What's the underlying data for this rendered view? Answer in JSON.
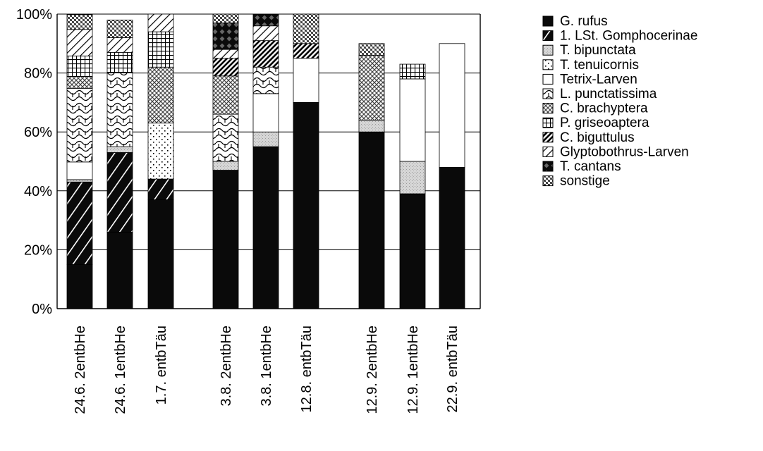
{
  "chart_data": {
    "type": "bar",
    "stacked": true,
    "percent": true,
    "ylim": [
      0,
      100
    ],
    "yticks": [
      "0%",
      "20%",
      "40%",
      "60%",
      "80%",
      "100%"
    ],
    "grid": "horizontal",
    "legend_position": "right",
    "categories": [
      "24.6. 2entbHe",
      "24.6. 1entbHe",
      "1.7. entbTäu",
      "3.8. 2entbHe",
      "3.8. 1entbHe",
      "12.8. entbTäu",
      "12.9. 2entbHe",
      "12.9. 1entbHe",
      "22.9. entbTäu"
    ],
    "groups": [
      [
        0,
        1,
        2
      ],
      [
        3,
        4,
        5
      ],
      [
        6,
        7,
        8
      ]
    ],
    "series": [
      {
        "name": "G. rufus",
        "pattern": "solid",
        "values": [
          15,
          26,
          37,
          47,
          55,
          70,
          60,
          39,
          48
        ]
      },
      {
        "name": "1. LSt. Gomphocerinae",
        "pattern": "diag-bold",
        "values": [
          28,
          27,
          7,
          0,
          0,
          0,
          0,
          0,
          0
        ]
      },
      {
        "name": "T. bipunctata",
        "pattern": "stipple",
        "values": [
          0.8,
          2,
          0,
          3,
          5,
          0,
          4,
          11,
          0
        ]
      },
      {
        "name": "T. tenuicornis",
        "pattern": "dots",
        "values": [
          0,
          0,
          19,
          0,
          0,
          0,
          0,
          0,
          0
        ]
      },
      {
        "name": "Tetrix-Larven",
        "pattern": "empty",
        "values": [
          6,
          0,
          0,
          0,
          13,
          15,
          0,
          28,
          42
        ]
      },
      {
        "name": "L. punctatissima",
        "pattern": "wave",
        "values": [
          25,
          25,
          0,
          16,
          9,
          0,
          0,
          0,
          0
        ]
      },
      {
        "name": "C. brachyptera",
        "pattern": "crosshatch",
        "values": [
          4,
          0,
          19,
          13,
          0,
          0,
          22,
          0,
          0
        ]
      },
      {
        "name": "P. griseoaptera",
        "pattern": "grid",
        "values": [
          7,
          7,
          12,
          0,
          0,
          0,
          0,
          5,
          0
        ]
      },
      {
        "name": "C. biguttulus",
        "pattern": "diag-dense",
        "values": [
          0,
          0,
          0,
          6,
          9,
          5,
          0,
          0,
          0
        ]
      },
      {
        "name": "Glyptobothrus-Larven",
        "pattern": "diag-sparse",
        "values": [
          9,
          5,
          6,
          3,
          5,
          0,
          0,
          0,
          0
        ]
      },
      {
        "name": "T. cantans",
        "pattern": "diamonds",
        "values": [
          0,
          0,
          0,
          9,
          4,
          0,
          0,
          0,
          0
        ]
      },
      {
        "name": "sonstige",
        "pattern": "checker",
        "values": [
          5,
          6,
          0,
          3,
          0,
          10,
          4,
          0,
          0
        ]
      }
    ]
  }
}
